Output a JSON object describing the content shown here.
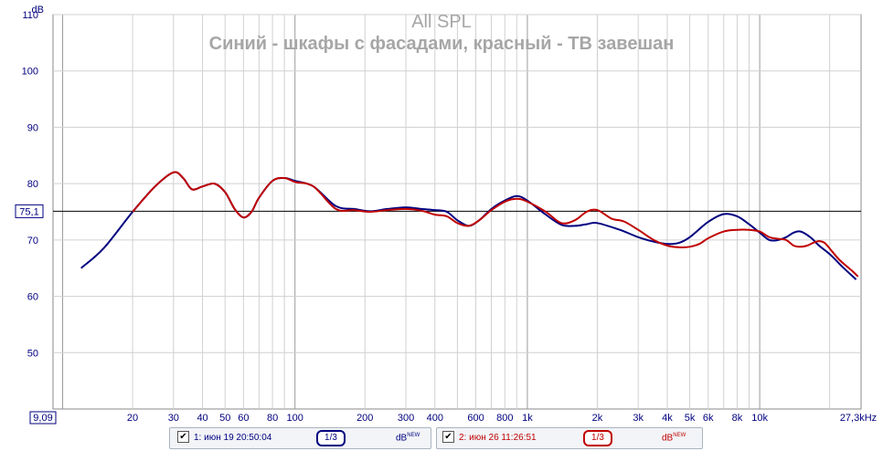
{
  "chart_data": {
    "type": "line",
    "title": "All SPL",
    "subtitle": "Синий - шкафы с фасадами, красный - ТВ завешан",
    "ylabel": "dB",
    "xscale": "log",
    "xlim": [
      9.09,
      27300
    ],
    "ylim": [
      40,
      110
    ],
    "y_ticks": [
      50,
      60,
      70,
      80,
      90,
      100,
      110
    ],
    "x_tick_labels": [
      "20",
      "30",
      "40",
      "50",
      "60",
      "80",
      "100",
      "200",
      "300",
      "400",
      "600",
      "800",
      "1k",
      "2k",
      "3k",
      "4k",
      "5k",
      "6k",
      "8k",
      "10k",
      "27,3kHz"
    ],
    "x_tick_values": [
      20,
      30,
      40,
      50,
      60,
      80,
      100,
      200,
      300,
      400,
      600,
      800,
      1000,
      2000,
      3000,
      4000,
      5000,
      6000,
      8000,
      10000,
      27300
    ],
    "x_min_label": "9,09",
    "reference_line": {
      "value": 75.1,
      "label": "75,1"
    },
    "series": [
      {
        "color": "#000080",
        "points": [
          [
            12,
            65
          ],
          [
            15,
            68.5
          ],
          [
            20,
            75
          ],
          [
            25,
            79.5
          ],
          [
            30,
            82
          ],
          [
            33,
            81
          ],
          [
            36,
            79
          ],
          [
            40,
            79.5
          ],
          [
            45,
            80
          ],
          [
            50,
            78.5
          ],
          [
            55,
            75.5
          ],
          [
            60,
            74
          ],
          [
            65,
            75
          ],
          [
            70,
            77.5
          ],
          [
            80,
            80.5
          ],
          [
            90,
            81
          ],
          [
            100,
            80.5
          ],
          [
            120,
            79.5
          ],
          [
            150,
            76
          ],
          [
            180,
            75.5
          ],
          [
            210,
            75.1
          ],
          [
            250,
            75.5
          ],
          [
            300,
            75.8
          ],
          [
            350,
            75.5
          ],
          [
            400,
            75.3
          ],
          [
            450,
            75
          ],
          [
            500,
            73.5
          ],
          [
            560,
            72.5
          ],
          [
            620,
            73.5
          ],
          [
            700,
            75.5
          ],
          [
            800,
            77
          ],
          [
            900,
            77.8
          ],
          [
            1000,
            77
          ],
          [
            1200,
            74.5
          ],
          [
            1400,
            72.7
          ],
          [
            1600,
            72.5
          ],
          [
            1800,
            72.8
          ],
          [
            2000,
            73
          ],
          [
            2500,
            71.8
          ],
          [
            3000,
            70.5
          ],
          [
            3500,
            69.7
          ],
          [
            4000,
            69.3
          ],
          [
            4500,
            69.5
          ],
          [
            5000,
            70.5
          ],
          [
            6000,
            73.2
          ],
          [
            7000,
            74.6
          ],
          [
            8000,
            74.2
          ],
          [
            9000,
            72.8
          ],
          [
            10000,
            71.3
          ],
          [
            11000,
            70
          ],
          [
            12000,
            70
          ],
          [
            13000,
            70.5
          ],
          [
            14000,
            71.3
          ],
          [
            15000,
            71.5
          ],
          [
            16500,
            70.5
          ],
          [
            18000,
            69
          ],
          [
            20000,
            67.5
          ],
          [
            23000,
            65
          ],
          [
            26000,
            63
          ]
        ]
      },
      {
        "color": "#c00000",
        "points": [
          [
            20,
            75
          ],
          [
            25,
            79.5
          ],
          [
            30,
            82
          ],
          [
            33,
            81
          ],
          [
            36,
            79
          ],
          [
            40,
            79.5
          ],
          [
            45,
            80
          ],
          [
            50,
            78.5
          ],
          [
            55,
            75.5
          ],
          [
            60,
            74
          ],
          [
            65,
            75
          ],
          [
            70,
            77.5
          ],
          [
            80,
            80.5
          ],
          [
            90,
            81
          ],
          [
            100,
            80.3
          ],
          [
            120,
            79.5
          ],
          [
            150,
            75.5
          ],
          [
            180,
            75.3
          ],
          [
            210,
            75
          ],
          [
            250,
            75.3
          ],
          [
            300,
            75.5
          ],
          [
            350,
            75.2
          ],
          [
            400,
            74.5
          ],
          [
            450,
            74.2
          ],
          [
            500,
            73
          ],
          [
            560,
            72.5
          ],
          [
            620,
            73.5
          ],
          [
            700,
            75.3
          ],
          [
            800,
            76.8
          ],
          [
            900,
            77.3
          ],
          [
            1000,
            76.8
          ],
          [
            1200,
            75
          ],
          [
            1400,
            73
          ],
          [
            1600,
            73.5
          ],
          [
            1800,
            75
          ],
          [
            2000,
            75.3
          ],
          [
            2300,
            73.8
          ],
          [
            2600,
            73.3
          ],
          [
            3000,
            71.8
          ],
          [
            3500,
            70
          ],
          [
            4000,
            69
          ],
          [
            4500,
            68.7
          ],
          [
            5000,
            68.8
          ],
          [
            5500,
            69.3
          ],
          [
            6000,
            70.3
          ],
          [
            7000,
            71.5
          ],
          [
            8000,
            71.8
          ],
          [
            9000,
            71.8
          ],
          [
            10000,
            71.5
          ],
          [
            11000,
            70.5
          ],
          [
            12000,
            70.2
          ],
          [
            13000,
            70
          ],
          [
            14000,
            69
          ],
          [
            15000,
            68.8
          ],
          [
            16000,
            69
          ],
          [
            17000,
            69.5
          ],
          [
            18000,
            69.8
          ],
          [
            19000,
            69.5
          ],
          [
            20000,
            68.5
          ],
          [
            22000,
            66.5
          ],
          [
            25000,
            64.5
          ],
          [
            26500,
            63.5
          ]
        ]
      }
    ]
  },
  "legend": [
    {
      "checked": "✔",
      "label": "1: июн 19 20:50:04",
      "smoothing": "1/3",
      "units": "dB",
      "tag": "NEW",
      "color": "#000080"
    },
    {
      "checked": "✔",
      "label": "2: июн 26 11:26:51",
      "smoothing": "1/3",
      "units": "dB",
      "tag": "NEW",
      "color": "#c00000"
    }
  ]
}
